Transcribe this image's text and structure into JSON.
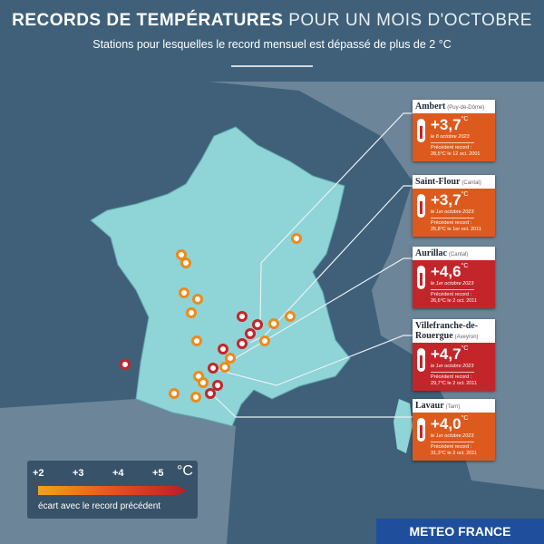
{
  "header": {
    "title_bold": "RECORDS DE TEMPÉRATURES",
    "title_light": "POUR UN MOIS D'OCTOBRE",
    "subtitle": "Stations pour lesquelles le record mensuel est dépassé de plus de 2 °C"
  },
  "callouts": [
    {
      "station": "Ambert",
      "department": "(Puy-de-Dôme)",
      "anomaly": "+3,7",
      "unit": "°C",
      "date": "le 8 octobre 2023",
      "previous_label": "Précédent record :",
      "previous": "28,5°C le 12 oct. 2001",
      "color": "#dd5a1e"
    },
    {
      "station": "Saint-Flour",
      "department": "(Cantal)",
      "anomaly": "+3,7",
      "unit": "°C",
      "date": "le 1er octobre 2023",
      "previous_label": "Précédent record :",
      "previous": "25,8°C le 1er oct. 2011",
      "color": "#dd5a1e"
    },
    {
      "station": "Aurillac",
      "department": "(Cantal)",
      "anomaly": "+4,6",
      "unit": "°C",
      "date": "le 1er octobre 2023",
      "previous_label": "Précédent record :",
      "previous": "26,6°C le 2 oct. 2011",
      "color": "#c3262a"
    },
    {
      "station": "Villefranche-de-Rouergue",
      "department": "(Aveyron)",
      "anomaly": "+4,7",
      "unit": "°C",
      "date": "le 1er octobre 2023",
      "previous_label": "Précédent record :",
      "previous": "29,7°C le 2 oct. 2011",
      "color": "#c3262a"
    },
    {
      "station": "Lavaur",
      "department": "(Tarn)",
      "anomaly": "+4,0",
      "unit": "°C",
      "date": "le 1er octobre 2023",
      "previous_label": "Précédent record :",
      "previous": "31,3°C le 2 oct. 2011",
      "color": "#dd5a1e"
    }
  ],
  "legend": {
    "ticks": [
      "+2",
      "+3",
      "+4",
      "+5"
    ],
    "unit": "°C",
    "caption": "écart avec le record précédent"
  },
  "logo": "METEO FRANCE"
}
